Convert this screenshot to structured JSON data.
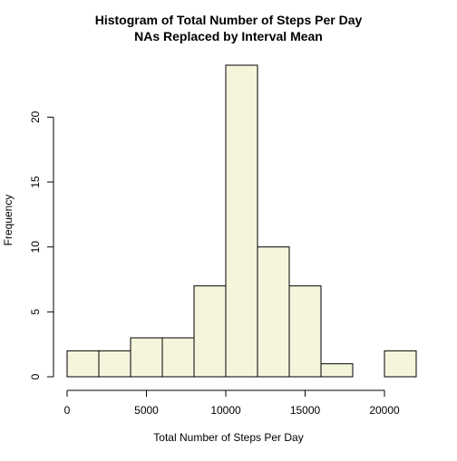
{
  "chart_data": {
    "type": "bar",
    "title": "Histogram of Total Number of Steps Per Day",
    "subtitle": "NAs Replaced by Interval Mean",
    "xlabel": "Total Number of Steps Per Day",
    "ylabel": "Frequency",
    "bins": [
      {
        "start": 0,
        "end": 2000,
        "count": 2
      },
      {
        "start": 2000,
        "end": 4000,
        "count": 2
      },
      {
        "start": 4000,
        "end": 6000,
        "count": 3
      },
      {
        "start": 6000,
        "end": 8000,
        "count": 3
      },
      {
        "start": 8000,
        "end": 10000,
        "count": 7
      },
      {
        "start": 10000,
        "end": 12000,
        "count": 24
      },
      {
        "start": 12000,
        "end": 14000,
        "count": 10
      },
      {
        "start": 14000,
        "end": 16000,
        "count": 7
      },
      {
        "start": 16000,
        "end": 18000,
        "count": 1
      },
      {
        "start": 18000,
        "end": 20000,
        "count": 0
      },
      {
        "start": 20000,
        "end": 22000,
        "count": 2
      }
    ],
    "xlim": [
      0,
      22000
    ],
    "ylim": [
      0,
      24
    ],
    "x_ticks": [
      0,
      5000,
      10000,
      15000,
      20000
    ],
    "y_ticks": [
      0,
      5,
      10,
      15,
      20
    ],
    "grid": false,
    "bar_fill": "#f5f5dc",
    "bar_stroke": "#000000"
  }
}
